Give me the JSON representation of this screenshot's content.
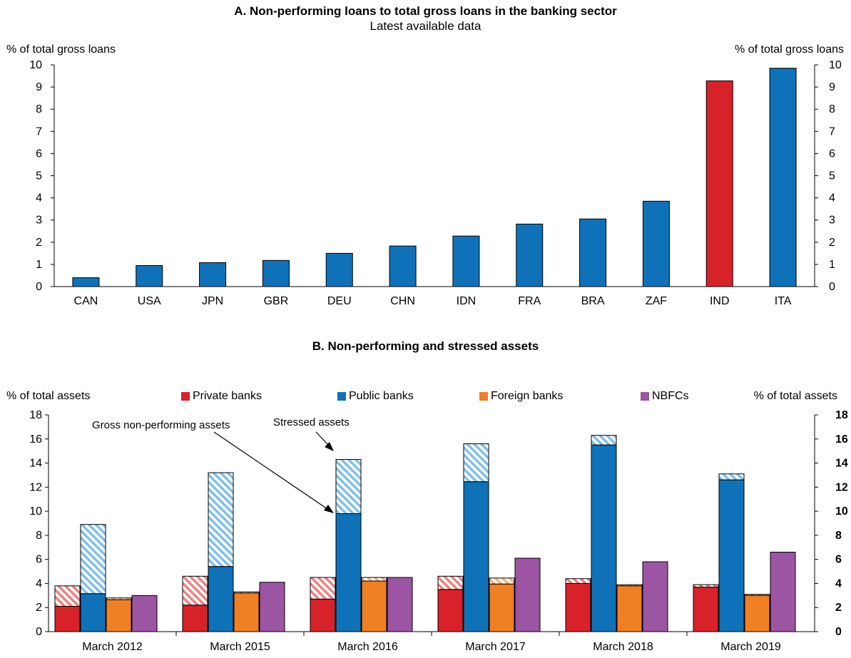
{
  "panelA": {
    "title": "A. Non-performing loans to total gross loans in the banking sector",
    "subtitle": "Latest available data",
    "ylabel_left": "% of total gross loans",
    "ylabel_right": "% of total gross loans"
  },
  "panelB": {
    "title": "B. Non-performing and stressed assets",
    "ylabel_left": "% of total assets",
    "ylabel_right": "% of total assets",
    "legend": [
      "Private banks",
      "Public banks",
      "Foreign banks",
      "NBFCs"
    ],
    "annotation_gross": "Gross non-performing assets",
    "annotation_stressed": "Stressed assets"
  },
  "colors": {
    "private": "#d7222a",
    "public": "#0f72b8",
    "foreign": "#f08024",
    "nbfc": "#9b55a3",
    "private_hatch": "#f08080",
    "public_hatch": "#7fbfe8",
    "foreign_hatch": "#f5b27a"
  },
  "chart_data": [
    {
      "type": "bar",
      "title": "A. Non-performing loans to total gross loans in the banking sector",
      "subtitle": "Latest available data",
      "ylabel": "% of total gross loans",
      "ylim": [
        0,
        10
      ],
      "yticks": [
        0,
        1,
        2,
        3,
        4,
        5,
        6,
        7,
        8,
        9,
        10
      ],
      "categories": [
        "CAN",
        "USA",
        "JPN",
        "GBR",
        "DEU",
        "CHN",
        "IDN",
        "FRA",
        "BRA",
        "ZAF",
        "IND",
        "ITA"
      ],
      "values": [
        0.4,
        0.95,
        1.08,
        1.18,
        1.5,
        1.83,
        2.28,
        2.82,
        3.05,
        3.85,
        9.28,
        9.85
      ],
      "highlight": "IND",
      "grid": false,
      "secondary_axis": true
    },
    {
      "type": "bar",
      "title": "B. Non-performing and stressed assets",
      "ylabel": "% of total assets",
      "ylim": [
        0,
        18
      ],
      "yticks": [
        0,
        2,
        4,
        6,
        8,
        10,
        12,
        14,
        16,
        18
      ],
      "categories": [
        "March 2012",
        "March 2015",
        "March 2016",
        "March 2017",
        "March 2018",
        "March 2019"
      ],
      "stacked": true,
      "legend_position": "top",
      "series": [
        {
          "name": "Private banks",
          "gross_npa": [
            2.1,
            2.2,
            2.7,
            3.5,
            4.0,
            3.7
          ],
          "stressed": [
            3.8,
            4.6,
            4.5,
            4.6,
            4.4,
            3.9
          ]
        },
        {
          "name": "Public banks",
          "gross_npa": [
            3.15,
            5.4,
            9.8,
            12.45,
            15.5,
            12.6
          ],
          "stressed": [
            8.9,
            13.2,
            14.3,
            15.6,
            16.3,
            13.1
          ]
        },
        {
          "name": "Foreign banks",
          "gross_npa": [
            2.65,
            3.2,
            4.2,
            3.95,
            3.8,
            3.0
          ],
          "stressed": [
            2.8,
            3.3,
            4.5,
            4.45,
            3.9,
            3.1
          ]
        },
        {
          "name": "NBFCs",
          "gross_npa": [
            3.0,
            4.1,
            4.5,
            6.1,
            5.8,
            6.6
          ],
          "stressed": [
            3.0,
            4.1,
            4.5,
            6.1,
            5.8,
            6.6
          ]
        }
      ],
      "annotations": [
        "Gross non-performing assets",
        "Stressed assets"
      ],
      "grid": false,
      "secondary_axis": true
    }
  ]
}
